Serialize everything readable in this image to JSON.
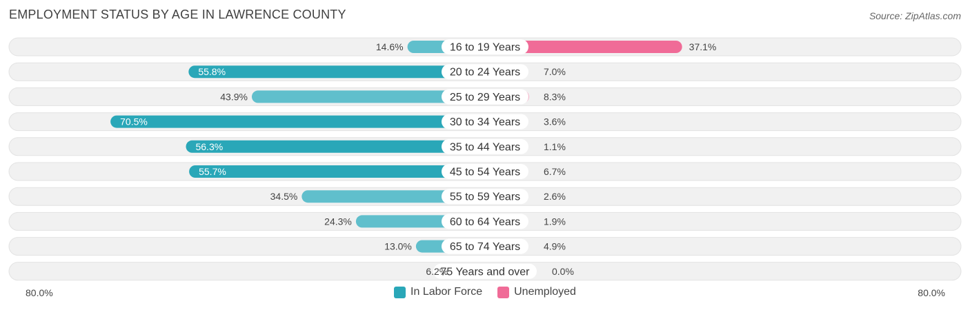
{
  "title": "EMPLOYMENT STATUS BY AGE IN LAWRENCE COUNTY",
  "source": "Source: ZipAtlas.com",
  "axis": {
    "left_label": "80.0%",
    "right_label": "80.0%"
  },
  "legend": {
    "in_labor_force": "In Labor Force",
    "unemployed": "Unemployed"
  },
  "colors": {
    "labor_dark": "#2aa7b8",
    "labor_light": "#60bfcc",
    "unemployed_dark": "#f06b97",
    "unemployed_light": "#f6a7c1",
    "row_bg": "#f1f1f1"
  },
  "chart_data": {
    "type": "bar",
    "orientation": "horizontal-diverging",
    "title": "EMPLOYMENT STATUS BY AGE IN LAWRENCE COUNTY",
    "xlim": [
      -80,
      80
    ],
    "categories": [
      "16 to 19 Years",
      "20 to 24 Years",
      "25 to 29 Years",
      "30 to 34 Years",
      "35 to 44 Years",
      "45 to 54 Years",
      "55 to 59 Years",
      "60 to 64 Years",
      "65 to 74 Years",
      "75 Years and over"
    ],
    "series": [
      {
        "name": "In Labor Force",
        "values": [
          14.6,
          55.8,
          43.9,
          70.5,
          56.3,
          55.7,
          34.5,
          24.3,
          13.0,
          6.2
        ],
        "labels": [
          "14.6%",
          "55.8%",
          "43.9%",
          "70.5%",
          "56.3%",
          "55.7%",
          "34.5%",
          "24.3%",
          "13.0%",
          "6.2%"
        ]
      },
      {
        "name": "Unemployed",
        "values": [
          37.1,
          7.0,
          8.3,
          3.6,
          1.1,
          6.7,
          2.6,
          1.9,
          4.9,
          0.0
        ],
        "labels": [
          "37.1%",
          "7.0%",
          "8.3%",
          "3.6%",
          "1.1%",
          "6.7%",
          "2.6%",
          "1.9%",
          "4.9%",
          "0.0%"
        ]
      }
    ]
  }
}
